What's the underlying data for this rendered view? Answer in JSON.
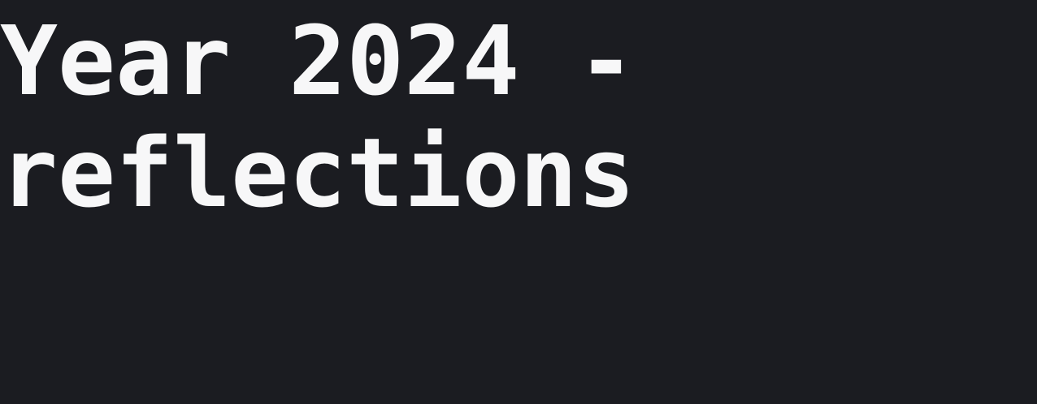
{
  "page": {
    "background_color": "#1b1c21",
    "text_color": "#f7f7f8"
  },
  "heading": {
    "line1": "Year 2024 -",
    "line2": "reflections"
  }
}
